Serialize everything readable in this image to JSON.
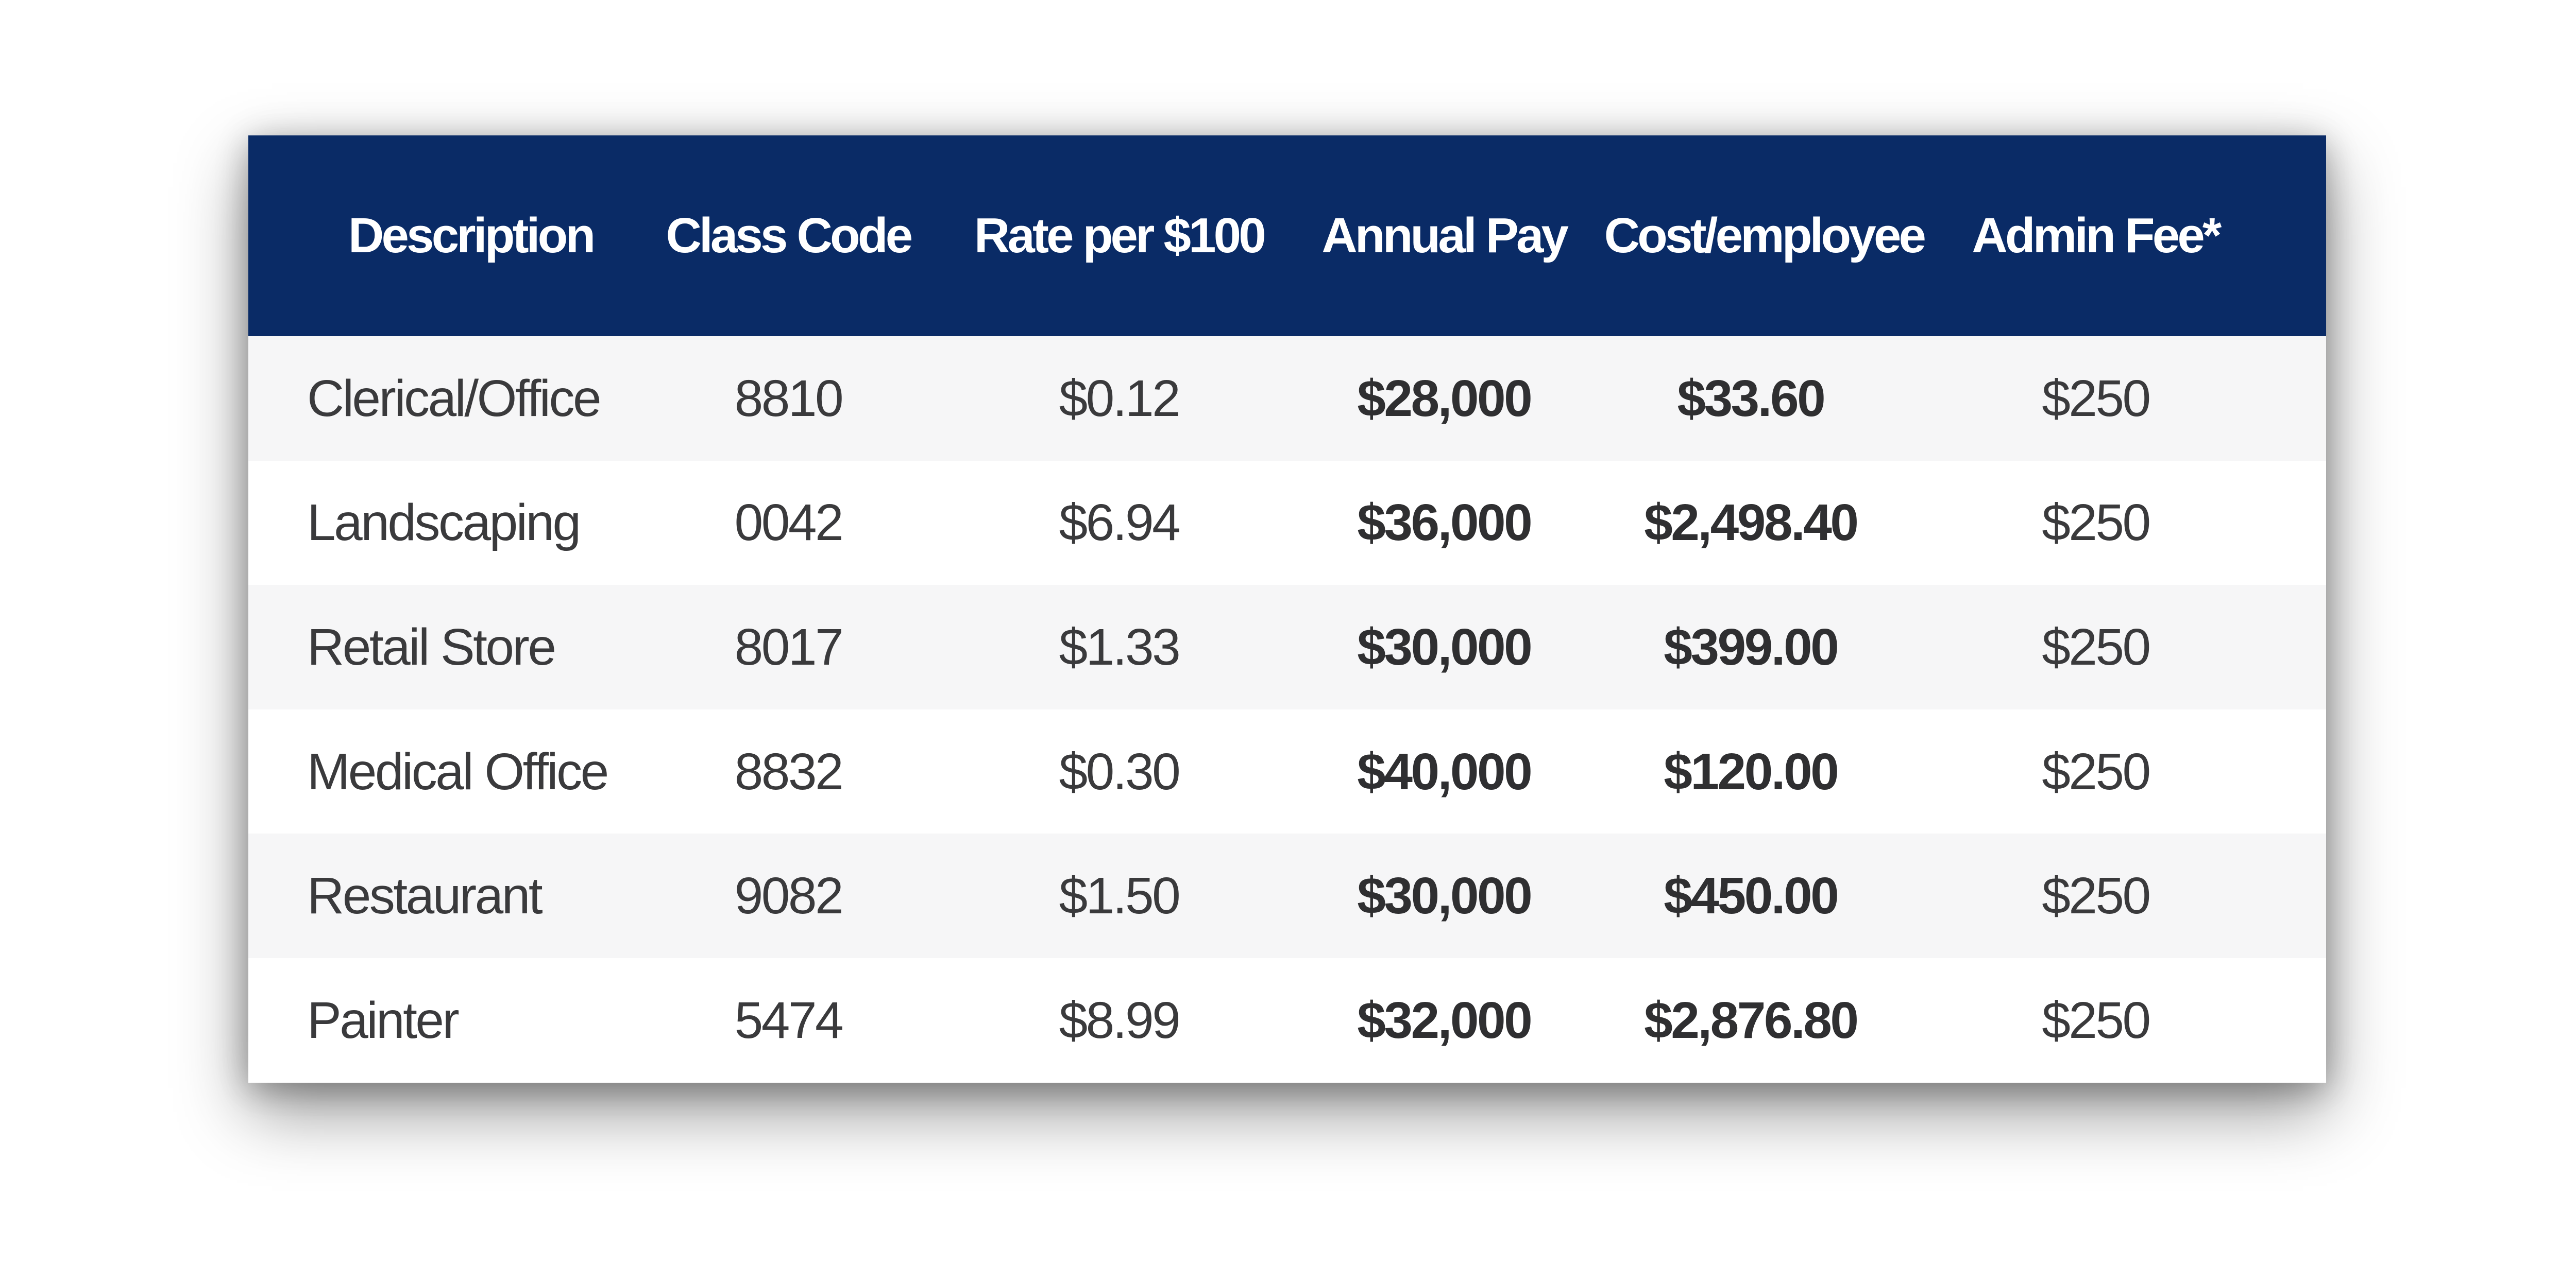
{
  "chart_data": {
    "type": "table",
    "title": "",
    "columns": [
      "Description",
      "Class Code",
      "Rate per $100",
      "Annual Pay",
      "Cost/employee",
      "Admin Fee*"
    ],
    "rows": [
      [
        "Clerical/Office",
        "8810",
        "$0.12",
        "$28,000",
        "$33.60",
        "$250"
      ],
      [
        "Landscaping",
        "0042",
        "$6.94",
        "$36,000",
        "$2,498.40",
        "$250"
      ],
      [
        "Retail Store",
        "8017",
        "$1.33",
        "$30,000",
        "$399.00",
        "$250"
      ],
      [
        "Medical Office",
        "8832",
        "$0.30",
        "$40,000",
        "$120.00",
        "$250"
      ],
      [
        "Restaurant",
        "9082",
        "$1.50",
        "$30,000",
        "$450.00",
        "$250"
      ],
      [
        "Painter",
        "5474",
        "$8.99",
        "$32,000",
        "$2,876.80",
        "$250"
      ]
    ],
    "layout_hints": {
      "header_position": "top",
      "striped": true,
      "stripe_order": "first-row-shaded",
      "bold_columns": [
        "Annual Pay",
        "Cost/employee"
      ],
      "description_alignment": "left",
      "other_columns_alignment": "center",
      "grid": false
    },
    "colors": {
      "header_bg": "#0a2b66",
      "header_text": "#ffffff",
      "row_bg": "#ffffff",
      "row_alt_bg": "#f6f6f7",
      "data_text": "#3a3a3c",
      "bold_data_text": "#2f2f31",
      "page_bg": "#ffffff"
    }
  }
}
